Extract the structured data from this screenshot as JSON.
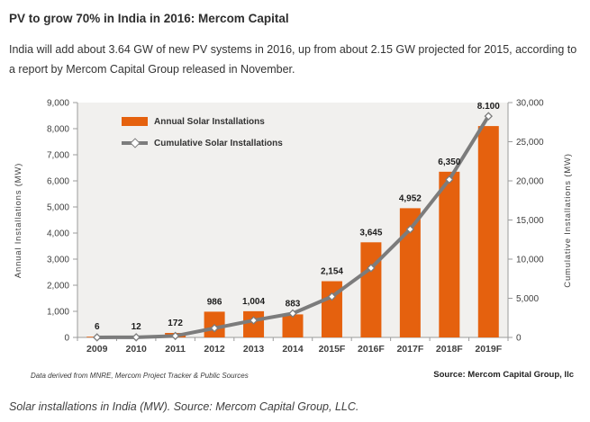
{
  "page": {
    "title": "PV to grow 70% in India in 2016: Mercom Capital",
    "intro": "India will add about 3.64 GW of new PV systems in 2016, up from about 2.15 GW projected for 2015, according to a report by Mercom Capital Group released in November.",
    "caption": "Solar installations in India (MW). Source: Mercom Capital Group, LLC."
  },
  "chart_data": {
    "type": "combo-bar-line",
    "title": "",
    "categories": [
      "2009",
      "2010",
      "2011",
      "2012",
      "2013",
      "2014",
      "2015F",
      "2016F",
      "2017F",
      "2018F",
      "2019F"
    ],
    "series": [
      {
        "name": "Annual Solar Installations",
        "type": "bar",
        "axis": "left",
        "color": "#E5610E",
        "values": [
          6,
          12,
          172,
          986,
          1004,
          883,
          2154,
          3645,
          4952,
          6350,
          8100
        ],
        "labels": [
          "6",
          "12",
          "172",
          "986",
          "1,004",
          "883",
          "2,154",
          "3,645",
          "4,952",
          "6,350",
          "8.100"
        ]
      },
      {
        "name": "Cumulative Solar Installations",
        "type": "line",
        "axis": "right",
        "color": "#7C7C7C",
        "marker": "diamond",
        "values": [
          6,
          18,
          190,
          1176,
          2180,
          3063,
          5217,
          8862,
          13814,
          20164,
          28264
        ]
      }
    ],
    "left_axis": {
      "title": "Annual Installations (MW)",
      "min": 0,
      "max": 9000,
      "step": 1000,
      "tick_labels": [
        "9,000",
        "8,000",
        "7,000",
        "6,000",
        "5,000",
        "4,000",
        "3,000",
        "2,000",
        "1,000",
        "0"
      ]
    },
    "right_axis": {
      "title": "Cumulative Installations (MW)",
      "min": 0,
      "max": 30000,
      "step": 5000,
      "tick_labels": [
        "30,000",
        "25,000",
        "20,000",
        "15,000",
        "10,000",
        "5,000",
        "0"
      ]
    },
    "legend_position": "top-left-inside",
    "grid": false,
    "plot_bg": "#F1F0EE",
    "axis_color": "#9B9B9B",
    "tick_text_color": "#3F3F3F",
    "data_label_color": "#1C1C1C",
    "footnote_left": "Data derived from MNRE, Mercom Project Tracker & Public  Sources",
    "footnote_right": "Source: Mercom Capital Group, llc"
  }
}
